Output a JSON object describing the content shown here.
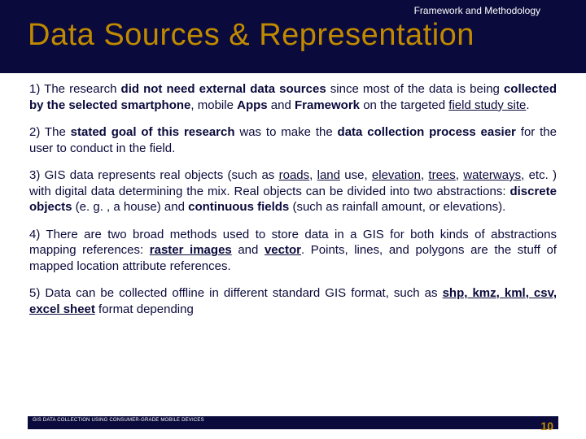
{
  "header": {
    "subtitle": "Framework and Methodology",
    "title": "Data Sources & Representation",
    "bg_color": "#0a0a3c",
    "title_color": "#c08a00",
    "subtitle_color": "#ffffff"
  },
  "items": [
    {
      "num": "1)",
      "runs": [
        {
          "t": " The research ",
          "b": false,
          "u": false
        },
        {
          "t": "did not need external data sources",
          "b": true,
          "u": false
        },
        {
          "t": " since most of the data is being ",
          "b": false,
          "u": false
        },
        {
          "t": "collected by the selected smartphone",
          "b": true,
          "u": false
        },
        {
          "t": ", mobile ",
          "b": false,
          "u": false
        },
        {
          "t": "Apps",
          "b": true,
          "u": false
        },
        {
          "t": " and ",
          "b": false,
          "u": false
        },
        {
          "t": "Framework",
          "b": true,
          "u": false
        },
        {
          "t": " on the targeted ",
          "b": false,
          "u": false
        },
        {
          "t": "field study site",
          "b": false,
          "u": true
        },
        {
          "t": ".",
          "b": false,
          "u": false
        }
      ]
    },
    {
      "num": "2)",
      "runs": [
        {
          "t": " The ",
          "b": false,
          "u": false
        },
        {
          "t": "stated goal of this research",
          "b": true,
          "u": false
        },
        {
          "t": " was to make the ",
          "b": false,
          "u": false
        },
        {
          "t": "data collection process easier",
          "b": true,
          "u": false
        },
        {
          "t": " for the user to conduct in the field.",
          "b": false,
          "u": false
        }
      ]
    },
    {
      "num": "3)",
      "runs": [
        {
          "t": " GIS data represents real objects (such as ",
          "b": false,
          "u": false
        },
        {
          "t": "roads",
          "b": false,
          "u": true
        },
        {
          "t": ", ",
          "b": false,
          "u": false
        },
        {
          "t": "land",
          "b": false,
          "u": true
        },
        {
          "t": " use, ",
          "b": false,
          "u": false
        },
        {
          "t": "elevation",
          "b": false,
          "u": true
        },
        {
          "t": ", ",
          "b": false,
          "u": false
        },
        {
          "t": "trees",
          "b": false,
          "u": true
        },
        {
          "t": ", ",
          "b": false,
          "u": false
        },
        {
          "t": "waterways",
          "b": false,
          "u": true
        },
        {
          "t": ", etc. ) with digital data determining the mix. Real objects can be divided into two abstractions: ",
          "b": false,
          "u": false
        },
        {
          "t": "discrete objects",
          "b": true,
          "u": false
        },
        {
          "t": " (e. g. , a house) and ",
          "b": false,
          "u": false
        },
        {
          "t": "continuous fields",
          "b": true,
          "u": false
        },
        {
          "t": " (such as rainfall amount, or elevations).",
          "b": false,
          "u": false
        }
      ]
    },
    {
      "num": "4)",
      "runs": [
        {
          "t": " There are two broad methods used to store data in a GIS for both kinds of abstractions mapping references: ",
          "b": false,
          "u": false
        },
        {
          "t": "raster images",
          "b": true,
          "u": true
        },
        {
          "t": " and ",
          "b": false,
          "u": false
        },
        {
          "t": "vector",
          "b": true,
          "u": true
        },
        {
          "t": ". Points, lines, and polygons are the stuff of mapped location attribute references.",
          "b": false,
          "u": false
        }
      ]
    },
    {
      "num": "5)",
      "runs": [
        {
          "t": " Data can be collected offline in different standard GIS format, such as ",
          "b": false,
          "u": false
        },
        {
          "t": "shp, kmz, kml, csv, excel sheet",
          "b": true,
          "u": true
        },
        {
          "t": " format depending",
          "b": false,
          "u": false
        }
      ]
    }
  ],
  "footer": {
    "text": "GIS DATA COLLECTION USING CONSUMER-GRADE MOBILE DEVICES",
    "page": "10"
  }
}
